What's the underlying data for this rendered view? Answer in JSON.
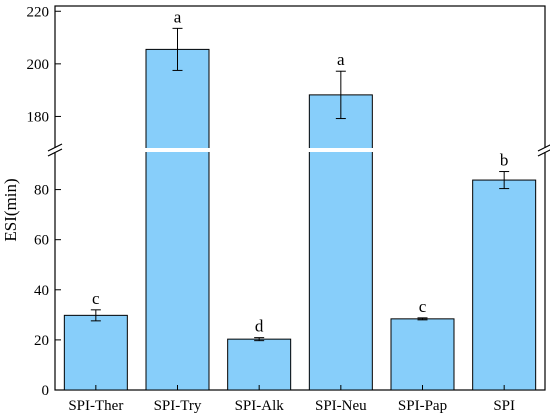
{
  "chart_data": {
    "type": "bar",
    "title": "",
    "ylabel": "ESI(min)",
    "xlabel": "",
    "categories": [
      "SPI-Ther",
      "SPI-Try",
      "SPI-Alk",
      "SPI-Neu",
      "SPI-Pap",
      "SPI"
    ],
    "values": [
      29.8,
      205.5,
      20.3,
      188.2,
      28.4,
      83.8
    ],
    "errors": [
      2.2,
      8.0,
      0.6,
      9.0,
      0.4,
      3.4
    ],
    "significance": [
      "c",
      "a",
      "d",
      "a",
      "c",
      "b"
    ],
    "bar_color": "#87cefa",
    "broken_axis": true,
    "ylim_lower": [
      0,
      95
    ],
    "ylim_upper": [
      168,
      222
    ],
    "yticks_lower": [
      0,
      20,
      40,
      60,
      80
    ],
    "yticks_upper": [
      180,
      200,
      220
    ],
    "grid": false
  }
}
